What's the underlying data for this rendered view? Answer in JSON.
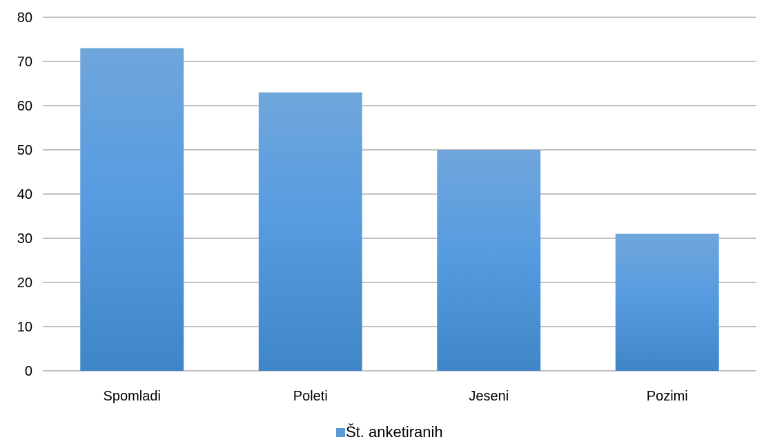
{
  "chart_data": {
    "type": "bar",
    "categories": [
      "Spomladi",
      "Poleti",
      "Jeseni",
      "Pozimi"
    ],
    "series": [
      {
        "name": "Št. anketiranih",
        "values": [
          73,
          63,
          50,
          31
        ]
      }
    ],
    "yticks": [
      0,
      10,
      20,
      30,
      40,
      50,
      60,
      70,
      80
    ],
    "ylim": [
      0,
      80
    ],
    "grid": true,
    "legend": "bottom",
    "colors": {
      "bar_top": "#6fa6dc",
      "bar_mid": "#579ce0",
      "bar_bottom": "#3f86c8",
      "gridline": "#868686",
      "legend_swatch": "#5b9bd5"
    }
  }
}
